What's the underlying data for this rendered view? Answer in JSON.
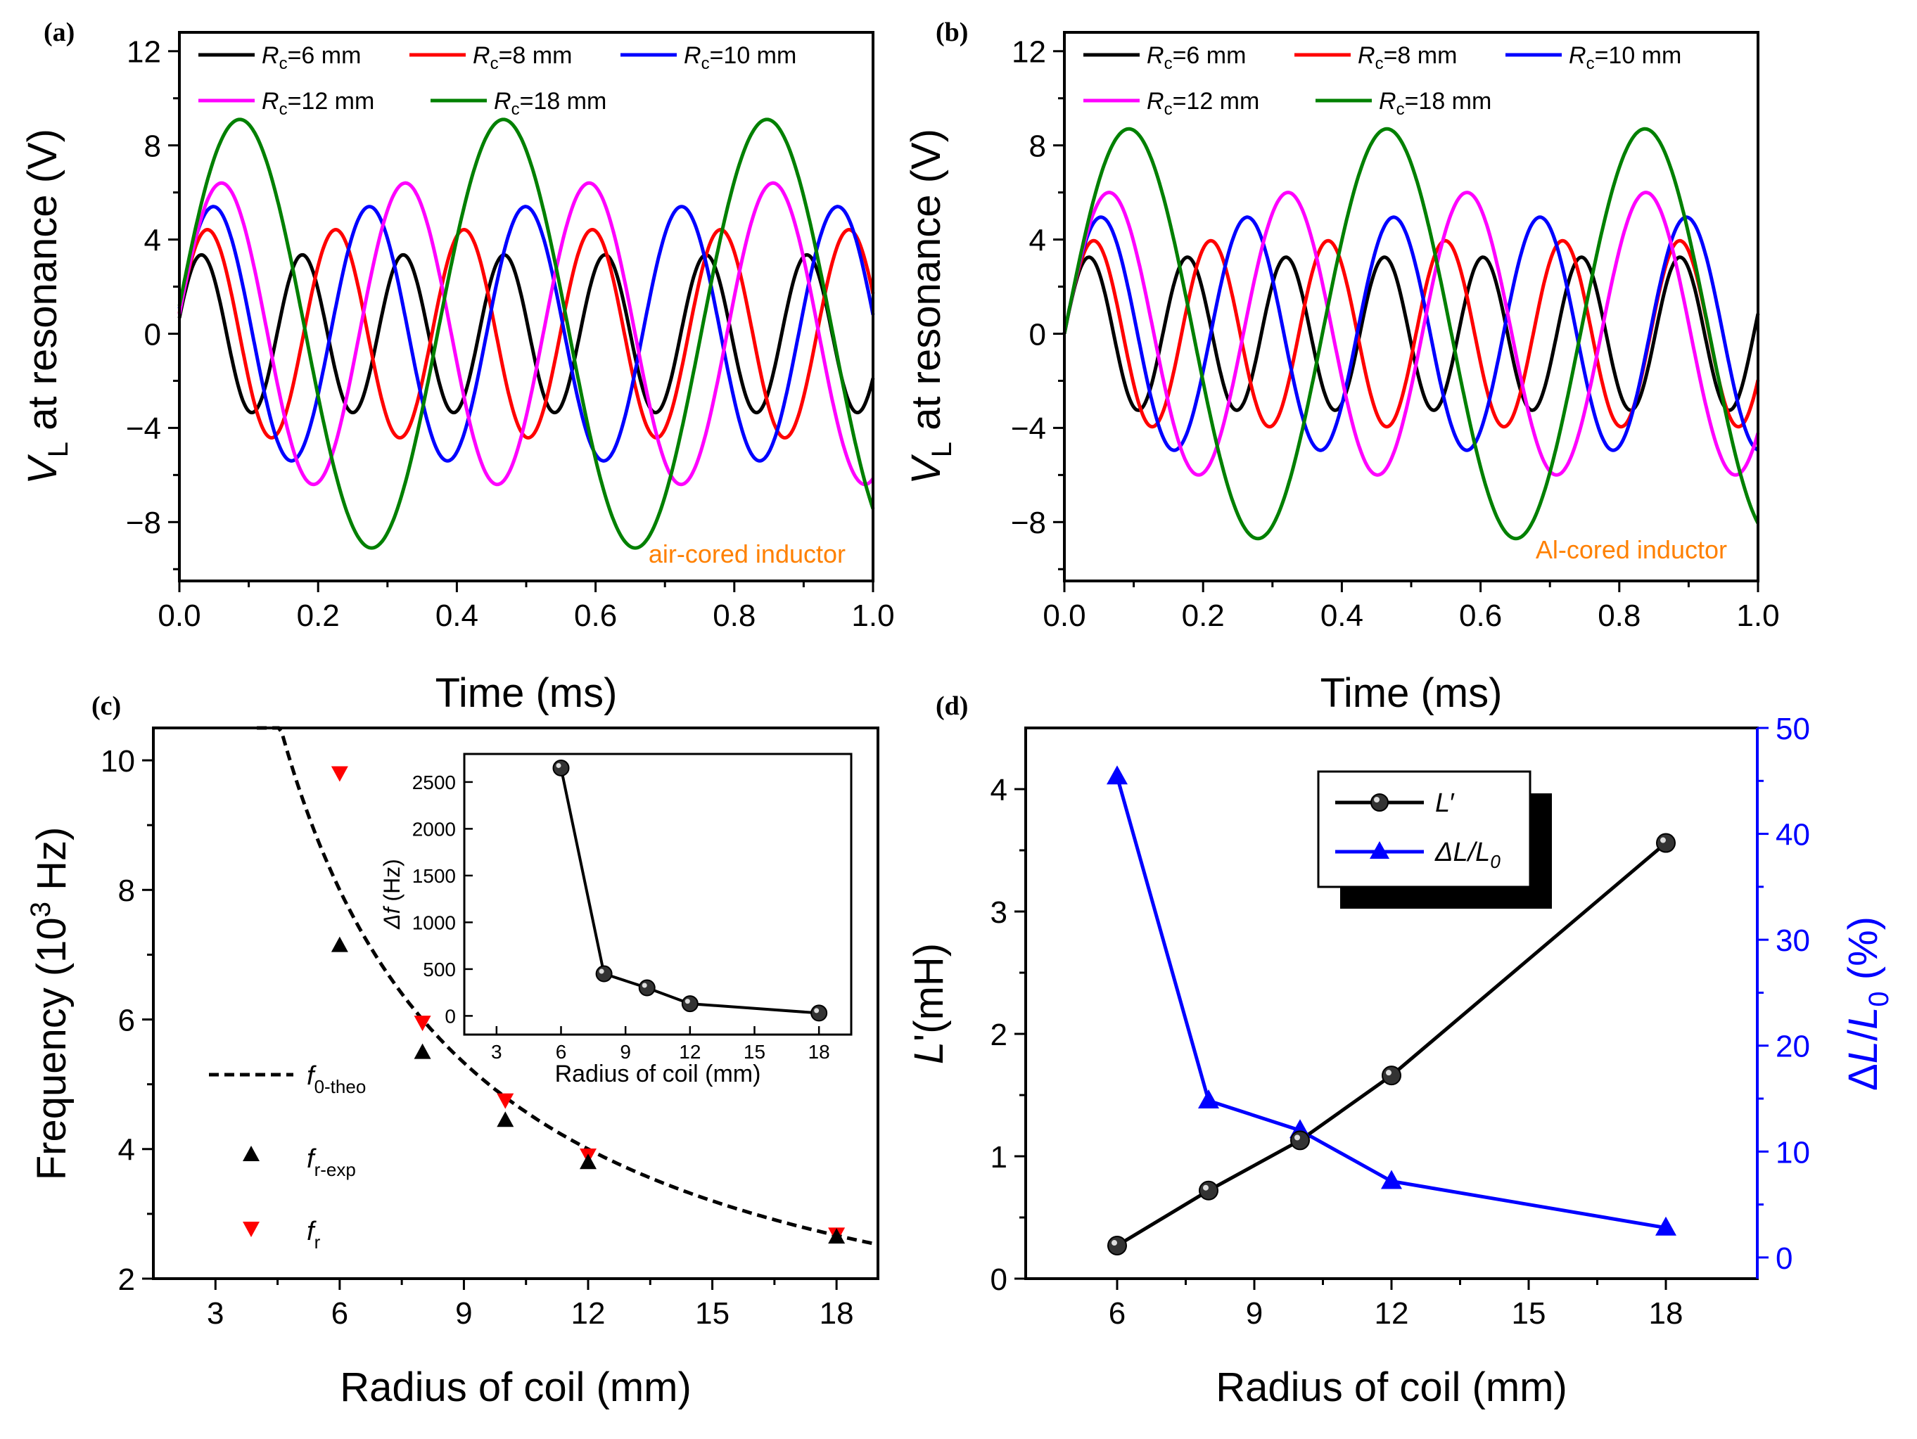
{
  "figure": {
    "colors": {
      "black": "#000000",
      "red": "#ff0000",
      "blue": "#0000ff",
      "magenta": "#ff00ff",
      "green": "#008000",
      "orange": "#ff8000",
      "darkred": "#cc0000"
    }
  },
  "chart_data": [
    {
      "id": "a",
      "panel_label": "(a)",
      "type": "line",
      "xlabel": "Time (ms)",
      "ylabel_main": "V",
      "ylabel_sub": "L",
      "ylabel_rest": " at resonance (V)",
      "annotation": "air-cored inductor",
      "xlim": [
        0.0,
        1.0
      ],
      "ylim": [
        -10.5,
        12.8
      ],
      "xticks": [
        0.0,
        0.2,
        0.4,
        0.6,
        0.8,
        1.0
      ],
      "xtick_labels": [
        "0.0",
        "0.2",
        "0.4",
        "0.6",
        "0.8",
        "1.0"
      ],
      "yticks": [
        -8,
        -4,
        0,
        4,
        8,
        12
      ],
      "ytick_labels": [
        "−8",
        "−4",
        "0",
        "4",
        "8",
        "12"
      ],
      "legend_location": "top",
      "series": [
        {
          "name_italic": "R",
          "name_sub": "c",
          "name_rest": "=6 mm",
          "color": "#000000",
          "amplitude": 3.35,
          "period_ms": 0.1455,
          "phase_rad": 0.2
        },
        {
          "name_italic": "R",
          "name_sub": "c",
          "name_rest": "=8 mm",
          "color": "#ff0000",
          "amplitude": 4.42,
          "period_ms": 0.185,
          "phase_rad": 0.2
        },
        {
          "name_italic": "R",
          "name_sub": "c",
          "name_rest": "=10 mm",
          "color": "#0000ff",
          "amplitude": 5.4,
          "period_ms": 0.225,
          "phase_rad": 0.2
        },
        {
          "name_italic": "R",
          "name_sub": "c",
          "name_rest": "=12 mm",
          "color": "#ff00ff",
          "amplitude": 6.4,
          "period_ms": 0.265,
          "phase_rad": 0.13
        },
        {
          "name_italic": "R",
          "name_sub": "c",
          "name_rest": "=18 mm",
          "color": "#008000",
          "amplitude": 9.1,
          "period_ms": 0.38,
          "phase_rad": 0.13
        }
      ]
    },
    {
      "id": "b",
      "panel_label": "(b)",
      "type": "line",
      "xlabel": "Time (ms)",
      "ylabel_main": "V",
      "ylabel_sub": "L",
      "ylabel_rest": " at resonance (V)",
      "annotation": "Al-cored inductor",
      "xlim": [
        0.0,
        1.0
      ],
      "ylim": [
        -10.5,
        12.8
      ],
      "xticks": [
        0.0,
        0.2,
        0.4,
        0.6,
        0.8,
        1.0
      ],
      "xtick_labels": [
        "0.0",
        "0.2",
        "0.4",
        "0.6",
        "0.8",
        "1.0"
      ],
      "yticks": [
        -8,
        -4,
        0,
        4,
        8,
        12
      ],
      "ytick_labels": [
        "−8",
        "−4",
        "0",
        "4",
        "8",
        "12"
      ],
      "legend_location": "top",
      "series": [
        {
          "name_italic": "R",
          "name_sub": "c",
          "name_rest": "=6 mm",
          "color": "#000000",
          "amplitude": 3.25,
          "period_ms": 0.142,
          "phase_rad": 0.0
        },
        {
          "name_italic": "R",
          "name_sub": "c",
          "name_rest": "=8 mm",
          "color": "#ff0000",
          "amplitude": 3.95,
          "period_ms": 0.169,
          "phase_rad": 0.0
        },
        {
          "name_italic": "R",
          "name_sub": "c",
          "name_rest": "=10 mm",
          "color": "#0000ff",
          "amplitude": 4.95,
          "period_ms": 0.211,
          "phase_rad": 0.0
        },
        {
          "name_italic": "R",
          "name_sub": "c",
          "name_rest": "=12 mm",
          "color": "#ff00ff",
          "amplitude": 6.0,
          "period_ms": 0.258,
          "phase_rad": 0.0
        },
        {
          "name_italic": "R",
          "name_sub": "c",
          "name_rest": "=18 mm",
          "color": "#008000",
          "amplitude": 8.7,
          "period_ms": 0.372,
          "phase_rad": 0.0
        }
      ]
    },
    {
      "id": "c",
      "panel_label": "(c)",
      "type": "scatter",
      "xlabel": "Radius of coil (mm)",
      "ylabel_pre": "Frequency (10",
      "ylabel_sup": "3",
      "ylabel_post": " Hz)",
      "xlim": [
        1.5,
        19.0
      ],
      "ylim": [
        2.0,
        10.5
      ],
      "xticks": [
        3,
        6,
        9,
        12,
        15,
        18
      ],
      "xtick_labels": [
        "3",
        "6",
        "9",
        "12",
        "15",
        "18"
      ],
      "yticks": [
        2,
        4,
        6,
        8,
        10
      ],
      "ytick_labels": [
        "2",
        "4",
        "6",
        "8",
        "10"
      ],
      "theory_constant_khz_mm": 48.0,
      "legend_location": "bottom-left",
      "legend": [
        {
          "main": "f",
          "sub": "0-theo",
          "kind": "dashed"
        },
        {
          "main": "f",
          "sub": "r-exp",
          "kind": "up-triangle"
        },
        {
          "main": "f",
          "sub": "r",
          "kind": "down-triangle"
        }
      ],
      "series": [
        {
          "name": "f0-theo",
          "kind": "dashed",
          "x_range": [
            4.0,
            19.0
          ]
        },
        {
          "name": "fr-exp",
          "kind": "up-triangle",
          "color": "#000000",
          "x": [
            6,
            8,
            10,
            12,
            18
          ],
          "y": [
            7.15,
            5.5,
            4.45,
            3.8,
            2.65
          ]
        },
        {
          "name": "fr",
          "kind": "down-triangle",
          "color": "#ff0000",
          "x": [
            6,
            8,
            10,
            12,
            18
          ],
          "y": [
            9.8,
            5.95,
            4.75,
            3.9,
            2.68
          ]
        }
      ],
      "inset": {
        "type": "line",
        "xlabel": "Radius of coil (mm)",
        "ylabel_main": "Δf",
        "ylabel_rest": " (Hz)",
        "xlim": [
          1.5,
          19.5
        ],
        "ylim": [
          -200,
          2800
        ],
        "xticks": [
          3,
          6,
          9,
          12,
          15,
          18
        ],
        "xtick_labels": [
          "3",
          "6",
          "9",
          "12",
          "15",
          "18"
        ],
        "yticks": [
          0,
          500,
          1000,
          1500,
          2000,
          2500
        ],
        "ytick_labels": [
          "0",
          "500",
          "1000",
          "1500",
          "2000",
          "2500"
        ],
        "x": [
          6,
          8,
          10,
          12,
          18
        ],
        "y": [
          2650,
          450,
          300,
          130,
          30
        ]
      }
    },
    {
      "id": "d",
      "panel_label": "(d)",
      "type": "line",
      "xlabel": "Radius of coil (mm)",
      "ylabel_left_main": "L",
      "ylabel_left_rest": "'(mH)",
      "ylabel_right_pre": "Δ",
      "ylabel_right_main": "L",
      "ylabel_right_slash": "/",
      "ylabel_right_main2": "L",
      "ylabel_right_sub": "0",
      "ylabel_right_rest": " (%)",
      "xlim": [
        4.0,
        20.0
      ],
      "ylim_left": [
        0.0,
        4.5
      ],
      "ylim_right": [
        -2.0,
        50.0
      ],
      "xticks": [
        6,
        9,
        12,
        15,
        18
      ],
      "xtick_labels": [
        "6",
        "9",
        "12",
        "15",
        "18"
      ],
      "yticks_left": [
        0,
        1,
        2,
        3,
        4
      ],
      "ytick_labels_left": [
        "0",
        "1",
        "2",
        "3",
        "4"
      ],
      "yticks_right": [
        0,
        10,
        20,
        30,
        40,
        50
      ],
      "ytick_labels_right": [
        "0",
        "10",
        "20",
        "30",
        "40",
        "50"
      ],
      "legend_location": "top-center",
      "legend": [
        {
          "main": "L",
          "rest": "′",
          "kind": "sphere"
        },
        {
          "main": "ΔL/L",
          "sub": "0",
          "kind": "triangle"
        }
      ],
      "series": [
        {
          "name": "L'",
          "axis": "left",
          "color": "#000000",
          "x": [
            6,
            8,
            10,
            12,
            18
          ],
          "y": [
            0.27,
            0.72,
            1.13,
            1.66,
            3.56
          ]
        },
        {
          "name": "dL/L0",
          "axis": "right",
          "color": "#0000ff",
          "x": [
            6,
            8,
            10,
            12,
            18
          ],
          "y": [
            45.4,
            14.8,
            12.0,
            7.2,
            2.8
          ]
        }
      ]
    }
  ]
}
